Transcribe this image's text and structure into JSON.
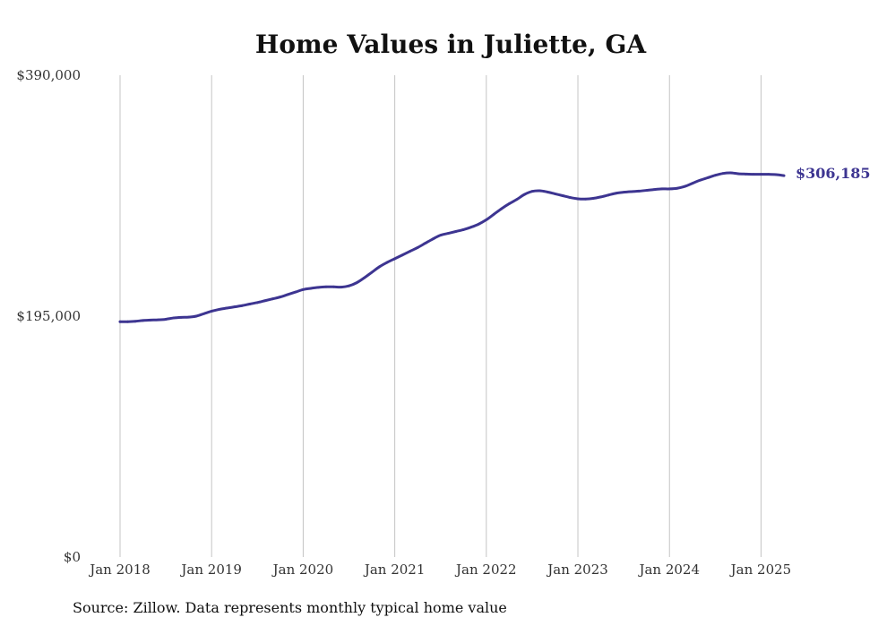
{
  "chart_data": {
    "type": "line",
    "title": "Home Values in Juliette, GA",
    "source": "Source: Zillow. Data represents monthly typical home value",
    "ylim": [
      0,
      390000
    ],
    "yticks": [
      {
        "value": 0,
        "label": "$0"
      },
      {
        "value": 195000,
        "label": "$195,000"
      },
      {
        "value": 390000,
        "label": "$390,000"
      }
    ],
    "xlim": [
      "2018-01",
      "2025-04"
    ],
    "xticks": [
      {
        "date": "2018-01",
        "label": "Jan 2018"
      },
      {
        "date": "2019-01",
        "label": "Jan 2019"
      },
      {
        "date": "2020-01",
        "label": "Jan 2020"
      },
      {
        "date": "2021-01",
        "label": "Jan 2021"
      },
      {
        "date": "2022-01",
        "label": "Jan 2022"
      },
      {
        "date": "2023-01",
        "label": "Jan 2023"
      },
      {
        "date": "2024-01",
        "label": "Jan 2024"
      },
      {
        "date": "2025-01",
        "label": "Jan 2025"
      }
    ],
    "grid": {
      "vertical": true,
      "horizontal": false
    },
    "line_color": "#3d3591",
    "end_label": "$306,185",
    "series": [
      {
        "points": [
          [
            "2018-01",
            190500
          ],
          [
            "2018-02",
            190500
          ],
          [
            "2018-03",
            190800
          ],
          [
            "2018-04",
            191500
          ],
          [
            "2018-05",
            191800
          ],
          [
            "2018-06",
            192000
          ],
          [
            "2018-07",
            192500
          ],
          [
            "2018-08",
            193500
          ],
          [
            "2018-09",
            194000
          ],
          [
            "2018-10",
            194200
          ],
          [
            "2018-11",
            195000
          ],
          [
            "2018-12",
            197000
          ],
          [
            "2019-01",
            199000
          ],
          [
            "2019-02",
            200500
          ],
          [
            "2019-03",
            201500
          ],
          [
            "2019-04",
            202500
          ],
          [
            "2019-05",
            203500
          ],
          [
            "2019-06",
            204800
          ],
          [
            "2019-07",
            206000
          ],
          [
            "2019-08",
            207500
          ],
          [
            "2019-09",
            209000
          ],
          [
            "2019-10",
            210500
          ],
          [
            "2019-11",
            212500
          ],
          [
            "2019-12",
            214500
          ],
          [
            "2020-01",
            216500
          ],
          [
            "2020-02",
            217500
          ],
          [
            "2020-03",
            218300
          ],
          [
            "2020-04",
            218700
          ],
          [
            "2020-05",
            218700
          ],
          [
            "2020-06",
            218500
          ],
          [
            "2020-07",
            219500
          ],
          [
            "2020-08",
            222000
          ],
          [
            "2020-09",
            226000
          ],
          [
            "2020-10",
            230500
          ],
          [
            "2020-11",
            235000
          ],
          [
            "2020-12",
            238500
          ],
          [
            "2021-01",
            241500
          ],
          [
            "2021-02",
            244500
          ],
          [
            "2021-03",
            247500
          ],
          [
            "2021-04",
            250500
          ],
          [
            "2021-05",
            254000
          ],
          [
            "2021-06",
            257500
          ],
          [
            "2021-07",
            260500
          ],
          [
            "2021-08",
            262000
          ],
          [
            "2021-09",
            263500
          ],
          [
            "2021-10",
            265000
          ],
          [
            "2021-11",
            267000
          ],
          [
            "2021-12",
            269500
          ],
          [
            "2022-01",
            273000
          ],
          [
            "2022-02",
            277500
          ],
          [
            "2022-03",
            282000
          ],
          [
            "2022-04",
            286000
          ],
          [
            "2022-05",
            289500
          ],
          [
            "2022-06",
            293500
          ],
          [
            "2022-07",
            296000
          ],
          [
            "2022-08",
            296500
          ],
          [
            "2022-09",
            295500
          ],
          [
            "2022-10",
            294000
          ],
          [
            "2022-11",
            292500
          ],
          [
            "2022-12",
            291000
          ],
          [
            "2023-01",
            290000
          ],
          [
            "2023-02",
            289800
          ],
          [
            "2023-03",
            290300
          ],
          [
            "2023-04",
            291500
          ],
          [
            "2023-05",
            293000
          ],
          [
            "2023-06",
            294500
          ],
          [
            "2023-07",
            295300
          ],
          [
            "2023-08",
            295800
          ],
          [
            "2023-09",
            296200
          ],
          [
            "2023-10",
            296800
          ],
          [
            "2023-11",
            297500
          ],
          [
            "2023-12",
            298000
          ],
          [
            "2024-01",
            298000
          ],
          [
            "2024-02",
            298500
          ],
          [
            "2024-03",
            300000
          ],
          [
            "2024-04",
            302500
          ],
          [
            "2024-05",
            305000
          ],
          [
            "2024-06",
            307000
          ],
          [
            "2024-07",
            309000
          ],
          [
            "2024-08",
            310500
          ],
          [
            "2024-09",
            311000
          ],
          [
            "2024-10",
            310300
          ],
          [
            "2024-11",
            310000
          ],
          [
            "2024-12",
            309800
          ],
          [
            "2025-01",
            309800
          ],
          [
            "2025-02",
            309800
          ],
          [
            "2025-03",
            309500
          ],
          [
            "2025-04",
            308700
          ]
        ]
      }
    ]
  }
}
